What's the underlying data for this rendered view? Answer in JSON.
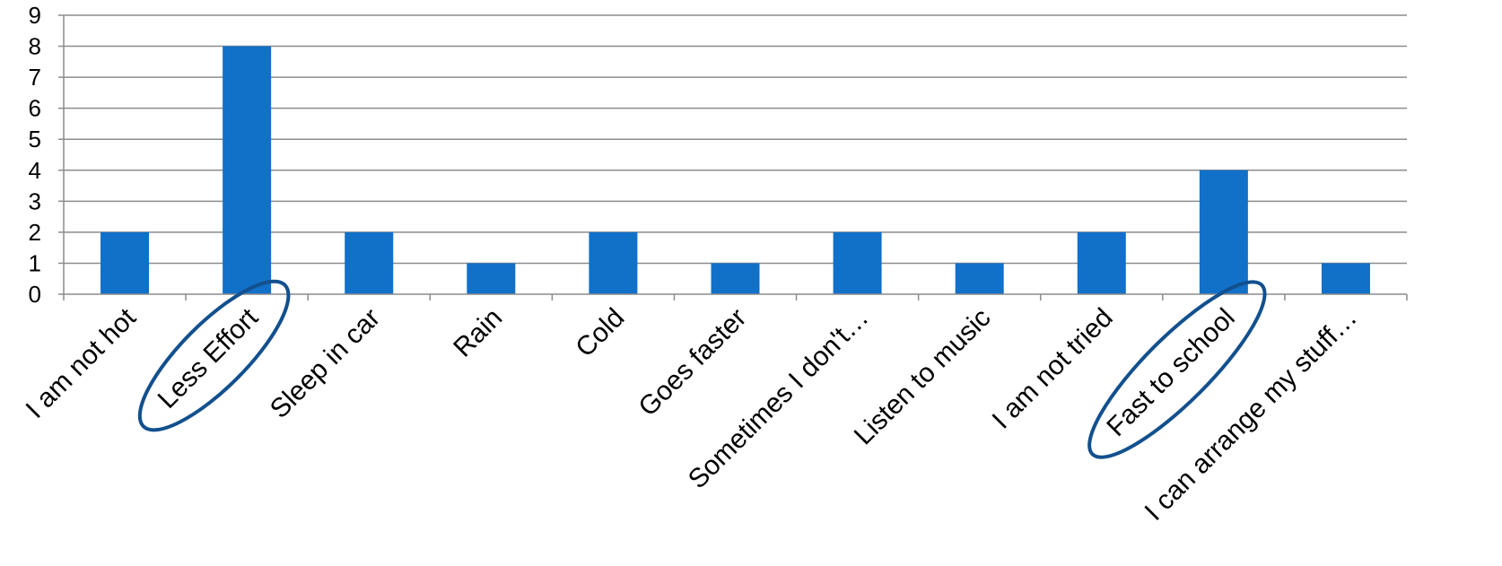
{
  "chart_data": {
    "type": "bar",
    "categories": [
      "I am not hot",
      "Less Effort",
      "Sleep in car",
      "Rain",
      "Cold",
      "Goes faster",
      "Sometimes I don't…",
      "Listen to music",
      "I am not tried",
      "Fast to school",
      "I can arrange my stuff…"
    ],
    "series": [
      {
        "values": [
          2,
          8,
          2,
          1,
          2,
          1,
          2,
          1,
          2,
          4,
          1
        ]
      }
    ],
    "ylim": [
      0,
      9
    ],
    "yticks": [
      0,
      1,
      2,
      3,
      4,
      5,
      6,
      7,
      8,
      9
    ],
    "grid": true,
    "legend": "none",
    "highlighted_categories": [
      "Less Effort",
      "Fast to school"
    ],
    "colors": {
      "bar": "#1170c8",
      "grid": "#8c8c8c",
      "highlight": "#12508e",
      "text": "#000000"
    }
  }
}
